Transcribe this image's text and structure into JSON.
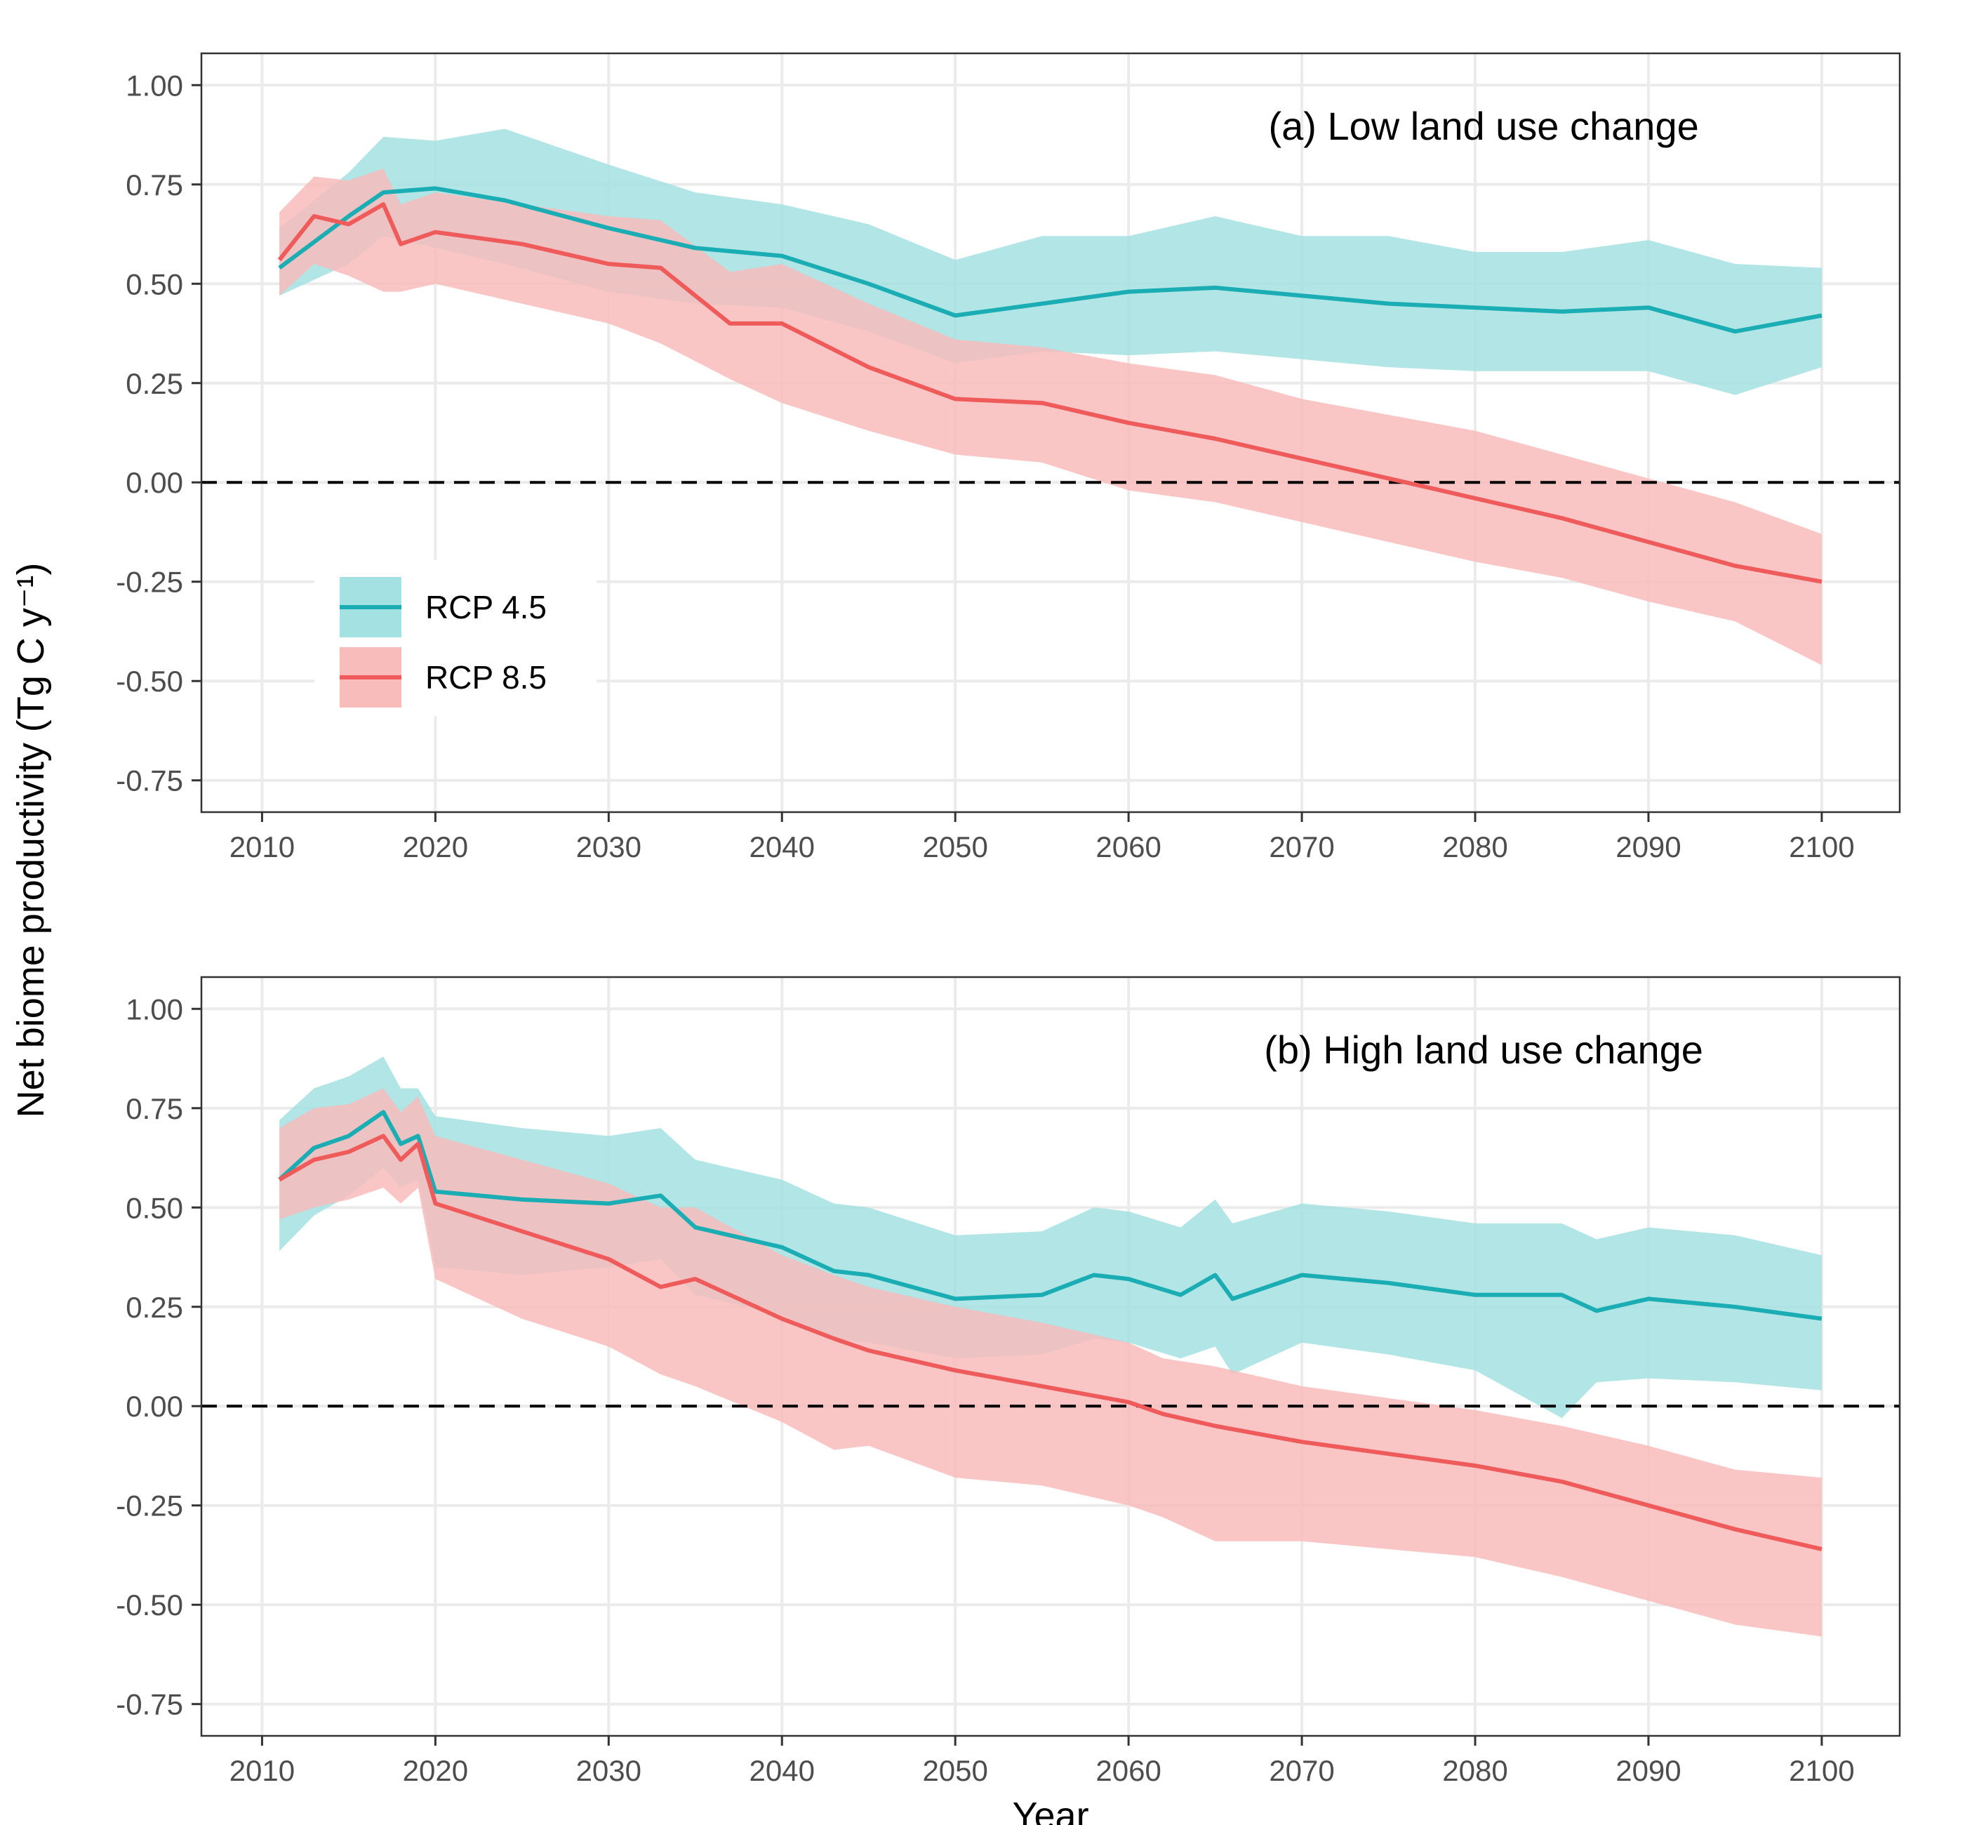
{
  "colors": {
    "rcp45_line": "#1aadb3",
    "rcp45_band": "#a3e1e2",
    "rcp85_line": "#ef5b5b",
    "rcp85_band": "#f8bcbb",
    "grid": "#ebebeb",
    "panel_border": "#333333",
    "zero_line": "#000000"
  },
  "chart_data": [
    {
      "type": "area",
      "panel": "a",
      "annotation": "(a) Low land use change",
      "xlabel": "",
      "ylabel": "Net biome productivity (Tg C y⁻¹)",
      "xlim": [
        2006.5,
        2104.5
      ],
      "ylim": [
        -0.83,
        1.08
      ],
      "x_ticks": [
        2010,
        2020,
        2030,
        2040,
        2050,
        2060,
        2070,
        2080,
        2090,
        2100
      ],
      "y_ticks": [
        -0.75,
        -0.5,
        -0.25,
        0.0,
        0.25,
        0.5,
        0.75,
        1.0
      ],
      "y_tick_labels": [
        "-0.75",
        "-0.50",
        "-0.25",
        "0.00",
        "0.25",
        "0.50",
        "0.75",
        "1.00"
      ],
      "hline": 0,
      "grid": true,
      "legend": {
        "position": "inside-left",
        "entries": [
          "RCP 4.5",
          "RCP 8.5"
        ]
      },
      "series": [
        {
          "name": "RCP 4.5",
          "x": [
            2011,
            2015,
            2017,
            2020,
            2024,
            2030,
            2035,
            2040,
            2045,
            2050,
            2055,
            2060,
            2065,
            2070,
            2075,
            2080,
            2085,
            2090,
            2095,
            2100
          ],
          "y": [
            0.54,
            0.67,
            0.73,
            0.74,
            0.71,
            0.64,
            0.59,
            0.57,
            0.5,
            0.42,
            0.45,
            0.48,
            0.49,
            0.47,
            0.45,
            0.44,
            0.43,
            0.44,
            0.38,
            0.42
          ],
          "lower": [
            0.47,
            0.55,
            0.62,
            0.59,
            0.55,
            0.48,
            0.45,
            0.44,
            0.38,
            0.3,
            0.33,
            0.32,
            0.33,
            0.31,
            0.29,
            0.28,
            0.28,
            0.28,
            0.22,
            0.29
          ],
          "upper": [
            0.64,
            0.78,
            0.87,
            0.86,
            0.89,
            0.8,
            0.73,
            0.7,
            0.65,
            0.56,
            0.62,
            0.62,
            0.67,
            0.62,
            0.62,
            0.58,
            0.58,
            0.61,
            0.55,
            0.54
          ]
        },
        {
          "name": "RCP 8.5",
          "x": [
            2011,
            2013,
            2015,
            2017,
            2018,
            2020,
            2025,
            2030,
            2033,
            2037,
            2040,
            2045,
            2050,
            2055,
            2060,
            2065,
            2070,
            2075,
            2080,
            2085,
            2090,
            2095,
            2100
          ],
          "y": [
            0.56,
            0.67,
            0.65,
            0.7,
            0.6,
            0.63,
            0.6,
            0.55,
            0.54,
            0.4,
            0.4,
            0.29,
            0.21,
            0.2,
            0.15,
            0.11,
            0.06,
            0.01,
            -0.04,
            -0.09,
            -0.15,
            -0.21,
            -0.25
          ],
          "lower": [
            0.47,
            0.55,
            0.52,
            0.48,
            0.48,
            0.5,
            0.45,
            0.4,
            0.35,
            0.26,
            0.2,
            0.13,
            0.07,
            0.05,
            -0.02,
            -0.05,
            -0.1,
            -0.15,
            -0.2,
            -0.24,
            -0.3,
            -0.35,
            -0.46
          ],
          "upper": [
            0.68,
            0.77,
            0.76,
            0.79,
            0.7,
            0.73,
            0.7,
            0.67,
            0.66,
            0.53,
            0.55,
            0.45,
            0.36,
            0.34,
            0.3,
            0.27,
            0.21,
            0.17,
            0.13,
            0.07,
            0.01,
            -0.05,
            -0.13
          ]
        }
      ]
    },
    {
      "type": "area",
      "panel": "b",
      "annotation": "(b) High land use change",
      "xlabel": "Year",
      "ylabel": "",
      "xlim": [
        2006.5,
        2104.5
      ],
      "ylim": [
        -0.83,
        1.08
      ],
      "x_ticks": [
        2010,
        2020,
        2030,
        2040,
        2050,
        2060,
        2070,
        2080,
        2090,
        2100
      ],
      "y_ticks": [
        -0.75,
        -0.5,
        -0.25,
        0.0,
        0.25,
        0.5,
        0.75,
        1.0
      ],
      "y_tick_labels": [
        "-0.75",
        "-0.50",
        "-0.25",
        "0.00",
        "0.25",
        "0.50",
        "0.75",
        "1.00"
      ],
      "hline": 0,
      "grid": true,
      "series": [
        {
          "name": "RCP 4.5",
          "x": [
            2011,
            2013,
            2015,
            2017,
            2018,
            2019,
            2020,
            2025,
            2030,
            2033,
            2035,
            2040,
            2043,
            2045,
            2050,
            2055,
            2058,
            2060,
            2063,
            2065,
            2066,
            2070,
            2075,
            2080,
            2085,
            2087,
            2090,
            2095,
            2100
          ],
          "y": [
            0.57,
            0.65,
            0.68,
            0.74,
            0.66,
            0.68,
            0.54,
            0.52,
            0.51,
            0.53,
            0.45,
            0.4,
            0.34,
            0.33,
            0.27,
            0.28,
            0.33,
            0.32,
            0.28,
            0.33,
            0.27,
            0.33,
            0.31,
            0.28,
            0.28,
            0.24,
            0.27,
            0.25,
            0.22
          ],
          "lower": [
            0.39,
            0.48,
            0.53,
            0.6,
            0.55,
            0.57,
            0.35,
            0.33,
            0.35,
            0.37,
            0.28,
            0.23,
            0.17,
            0.16,
            0.12,
            0.13,
            0.17,
            0.16,
            0.12,
            0.15,
            0.08,
            0.16,
            0.13,
            0.09,
            -0.03,
            0.06,
            0.07,
            0.06,
            0.04
          ],
          "upper": [
            0.72,
            0.8,
            0.83,
            0.88,
            0.8,
            0.8,
            0.73,
            0.7,
            0.68,
            0.7,
            0.62,
            0.57,
            0.51,
            0.5,
            0.43,
            0.44,
            0.5,
            0.49,
            0.45,
            0.52,
            0.46,
            0.51,
            0.49,
            0.46,
            0.46,
            0.42,
            0.45,
            0.43,
            0.38
          ]
        },
        {
          "name": "RCP 8.5",
          "x": [
            2011,
            2013,
            2015,
            2017,
            2018,
            2019,
            2020,
            2025,
            2030,
            2033,
            2035,
            2040,
            2043,
            2045,
            2050,
            2055,
            2060,
            2062,
            2065,
            2070,
            2075,
            2080,
            2085,
            2090,
            2095,
            2100
          ],
          "y": [
            0.57,
            0.62,
            0.64,
            0.68,
            0.62,
            0.66,
            0.51,
            0.44,
            0.37,
            0.3,
            0.32,
            0.22,
            0.17,
            0.14,
            0.09,
            0.05,
            0.01,
            -0.02,
            -0.05,
            -0.09,
            -0.12,
            -0.15,
            -0.19,
            -0.25,
            -0.31,
            -0.36
          ],
          "lower": [
            0.47,
            0.5,
            0.52,
            0.55,
            0.51,
            0.55,
            0.32,
            0.22,
            0.15,
            0.08,
            0.05,
            -0.04,
            -0.11,
            -0.1,
            -0.18,
            -0.2,
            -0.25,
            -0.28,
            -0.34,
            -0.34,
            -0.36,
            -0.38,
            -0.43,
            -0.49,
            -0.55,
            -0.58
          ],
          "upper": [
            0.7,
            0.75,
            0.76,
            0.8,
            0.74,
            0.78,
            0.68,
            0.62,
            0.56,
            0.5,
            0.5,
            0.38,
            0.33,
            0.3,
            0.25,
            0.21,
            0.16,
            0.12,
            0.1,
            0.05,
            0.02,
            -0.01,
            -0.05,
            -0.1,
            -0.16,
            -0.18
          ]
        }
      ]
    }
  ]
}
